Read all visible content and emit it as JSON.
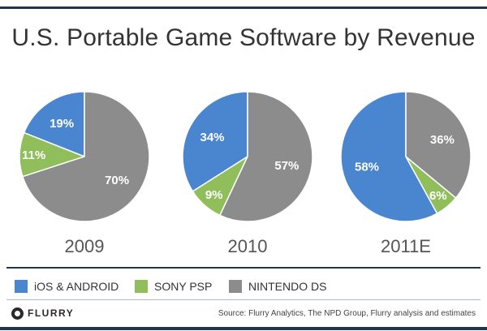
{
  "title": "U.S. Portable Game Software by Revenue",
  "chart_data": {
    "type": "pie",
    "title": "U.S. Portable Game Software by Revenue",
    "categories": [
      "iOS & ANDROID",
      "SONY PSP",
      "NINTENDO DS"
    ],
    "colors": [
      "#4a86cf",
      "#8fbe5a",
      "#8c8c8c"
    ],
    "pies": [
      {
        "label": "2009",
        "values": [
          19,
          11,
          70
        ],
        "value_labels": [
          "19%",
          "11%",
          "70%"
        ]
      },
      {
        "label": "2010",
        "values": [
          34,
          9,
          57
        ],
        "value_labels": [
          "34%",
          "9%",
          "57%"
        ]
      },
      {
        "label": "2011E",
        "values": [
          58,
          6,
          36
        ],
        "value_labels": [
          "58%",
          "6%",
          "36%"
        ]
      }
    ],
    "legend_position": "bottom"
  },
  "legend": [
    {
      "label": "iOS & ANDROID",
      "color": "#4a86cf"
    },
    {
      "label": "SONY PSP",
      "color": "#8fbe5a"
    },
    {
      "label": "NINTENDO DS",
      "color": "#8c8c8c"
    }
  ],
  "footer": {
    "logo_text": "FLURRY",
    "source": "Source: Flurry Analytics, The NPD Group, Flurry analysis  and estimates"
  }
}
